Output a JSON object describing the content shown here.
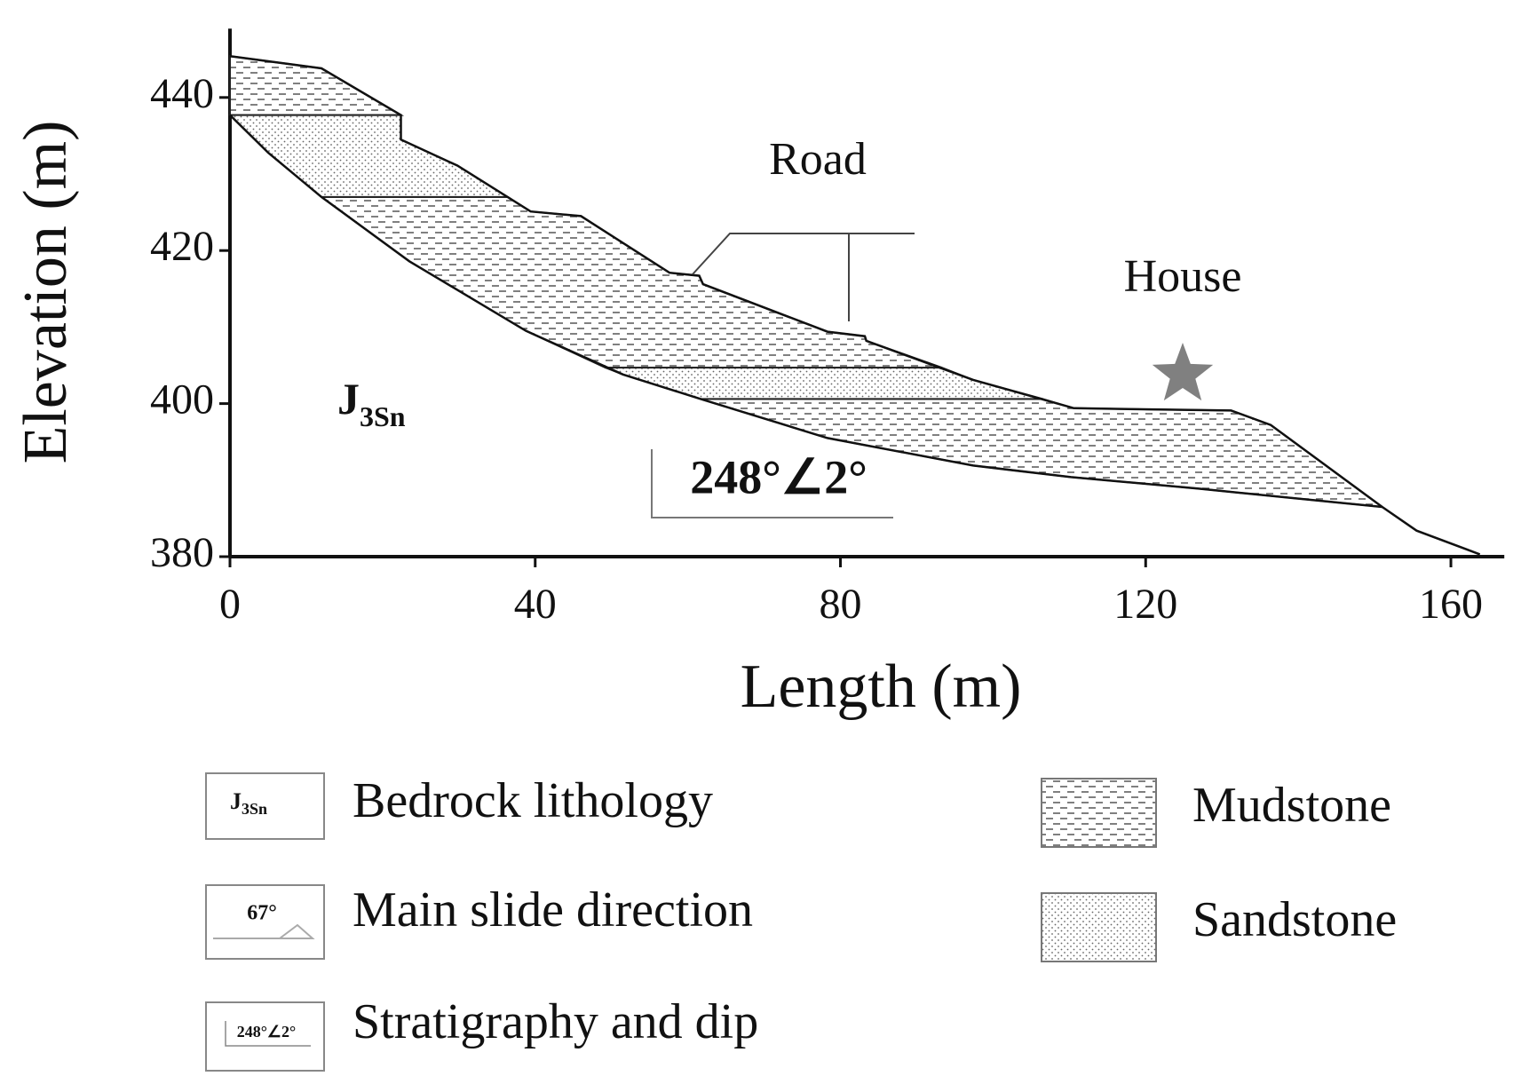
{
  "chart_data": {
    "type": "cross-section",
    "xlabel": "Length (m)",
    "ylabel": "Elevation (m)",
    "xlim": [
      0,
      167
    ],
    "ylim": [
      380,
      449
    ],
    "xticks": [
      0,
      40,
      80,
      120,
      160
    ],
    "yticks": [
      380,
      400,
      420,
      440
    ],
    "annotations": {
      "road": "Road",
      "house": "House",
      "bedrock": "J",
      "bedrock_sub": "3Sn",
      "dip": "248°∠2°"
    },
    "star_color": "#808080",
    "series": [
      {
        "name": "Mudstone",
        "pattern": "dashes",
        "polygons": [
          {
            "x": [
              0,
              12,
              22.4,
              0
            ],
            "values": [
              445.4,
              443.8,
              437.7,
              437.7
            ]
          },
          {
            "x": [
              12,
              36.4,
              39.4,
              46,
              57.6,
              61.5,
              62,
              78.3,
              83.2,
              83.4,
              93.3,
              49.2,
              38.8,
              23.5
            ],
            "values": [
              427,
              427,
              425.1,
              424.5,
              417.1,
              416.7,
              415.6,
              409.4,
              408.8,
              408.2,
              404.7,
              404.7,
              409.5,
              418.6
            ]
          },
          {
            "x": [
              61.7,
              106.5,
              110.6,
              131.2,
              136.4,
              151,
              126.8,
              110.2,
              97.4,
              78.3
            ],
            "values": [
              400.6,
              400.6,
              399.4,
              399.1,
              397.2,
              386.5,
              388.9,
              390.4,
              391.9,
              395.5
            ]
          }
        ]
      },
      {
        "name": "Sandstone",
        "pattern": "dots",
        "polygons": [
          {
            "x": [
              0,
              22.4,
              22.4,
              29.8,
              36.4,
              12,
              5
            ],
            "values": [
              437.7,
              437.7,
              434.5,
              431.1,
              427,
              427,
              432.8
            ]
          },
          {
            "x": [
              49.2,
              93.3,
              97.4,
              106.5,
              61.7,
              51.5
            ],
            "values": [
              404.7,
              404.7,
              403.1,
              400.6,
              400.6,
              403.8
            ]
          }
        ]
      }
    ],
    "ground": {
      "x": [
        0,
        12,
        22.4,
        22.4,
        29.8,
        39.4,
        46,
        57.6,
        61.5,
        62,
        78.3,
        83.2,
        83.4,
        97.4,
        110.6,
        131.2,
        136.4,
        151,
        155.5,
        163.8
      ],
      "values": [
        445.4,
        443.8,
        437.7,
        434.5,
        431.1,
        425.1,
        424.5,
        417.1,
        416.7,
        415.6,
        409.4,
        408.8,
        408.2,
        403.1,
        399.4,
        399.1,
        397.2,
        386.5,
        383.4,
        380.3
      ]
    },
    "slide_surface": {
      "x": [
        0,
        5,
        12,
        23.5,
        38.8,
        51.5,
        61.7,
        78.3,
        97.4,
        110.2,
        126.8,
        151
      ],
      "values": [
        437.7,
        432.8,
        427,
        418.6,
        409.5,
        403.8,
        400.6,
        395.5,
        391.9,
        390.4,
        388.9,
        386.5
      ]
    },
    "legend_items": [
      {
        "label": "Bedrock lithology",
        "symbol": "J",
        "symbol_sub": "3Sn"
      },
      {
        "label": "Main slide direction",
        "symbol": "67°"
      },
      {
        "label": "Stratigraphy and dip",
        "symbol": "248°∠2°"
      }
    ]
  }
}
